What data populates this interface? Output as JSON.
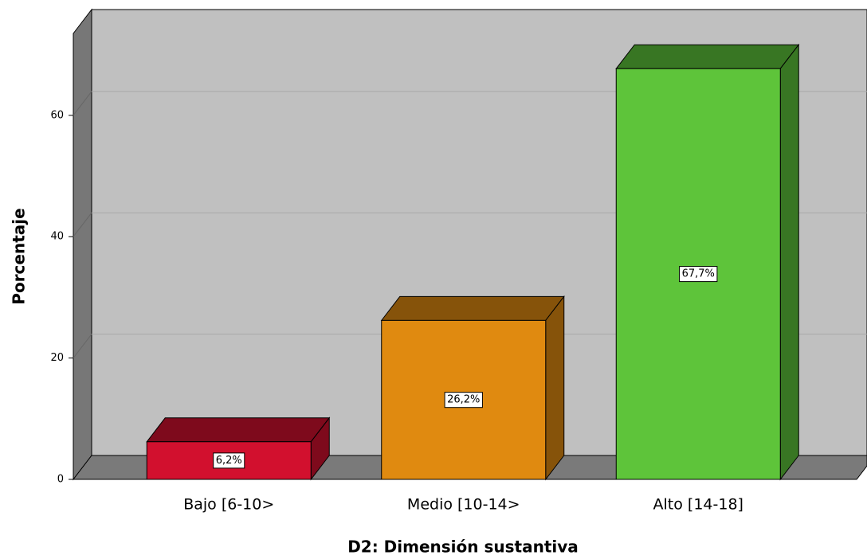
{
  "chart_data": {
    "type": "bar3d",
    "categories": [
      "Bajo [6-10>",
      "Medio [10-14>",
      "Alto [14-18]"
    ],
    "values": [
      6.2,
      26.2,
      67.7
    ],
    "value_labels": [
      "6,2%",
      "26,2%",
      "67,7%"
    ],
    "colors": [
      "#d2102e",
      "#e08a10",
      "#5ec43a"
    ],
    "xlabel": "D2: Dimensión sustantiva",
    "ylabel": "Porcentaje",
    "ylim": [
      0,
      73.5
    ],
    "yticks": [
      0,
      20,
      40,
      60
    ],
    "grid": true
  }
}
